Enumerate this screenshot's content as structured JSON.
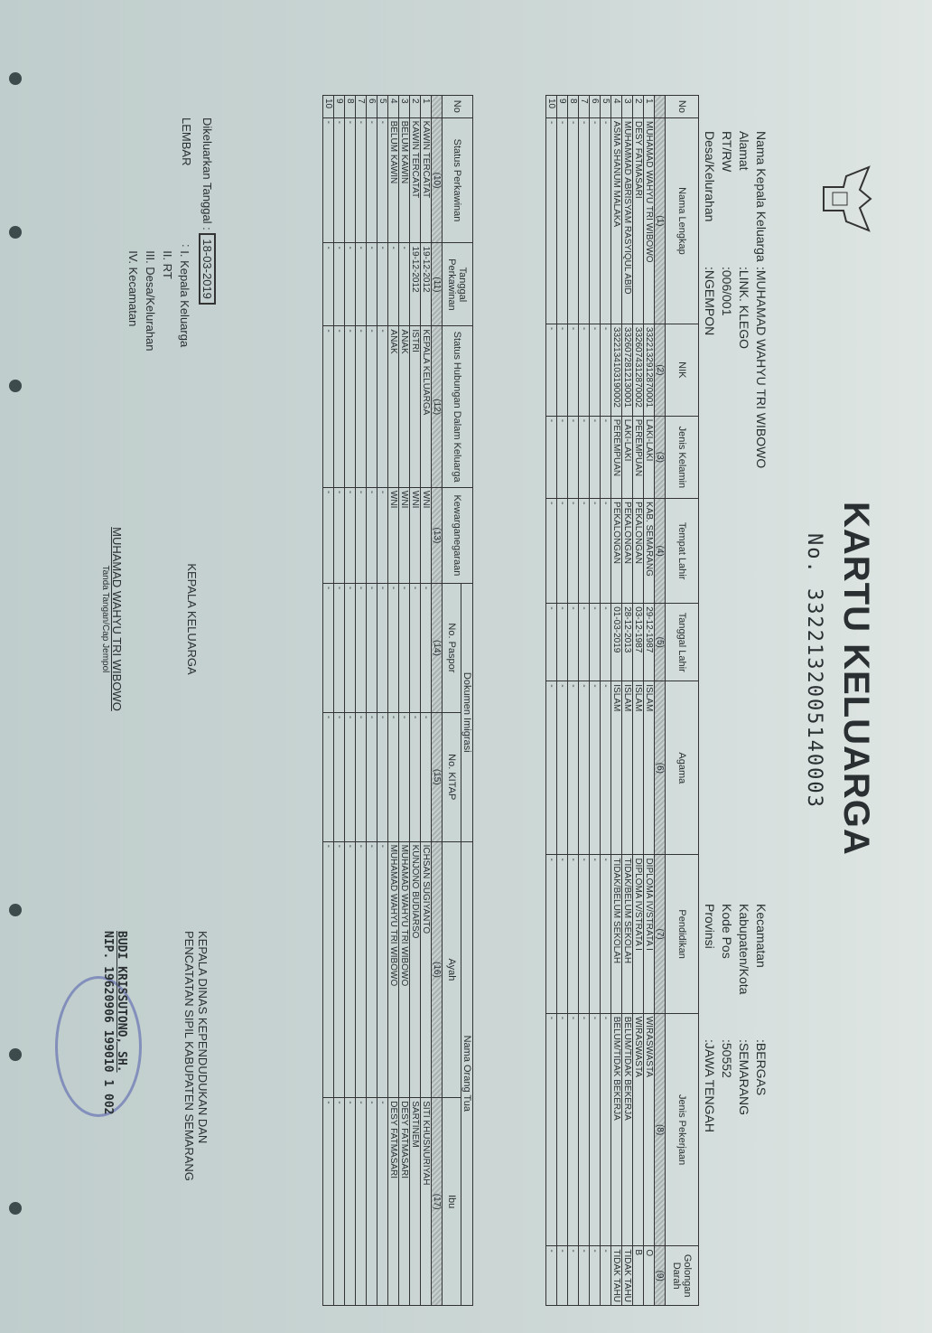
{
  "header": {
    "title": "KARTU KELUARGA",
    "number": "No. 3322132005140003"
  },
  "info_left": [
    {
      "label": "Nama Kepala Keluarga",
      "value": "MUHAMAD WAHYU TRI WIBOWO"
    },
    {
      "label": "Alamat",
      "value": "LINK. KLEGO"
    },
    {
      "label": "RT/RW",
      "value": "006/001"
    },
    {
      "label": "Desa/Kelurahan",
      "value": "NGEMPON"
    }
  ],
  "info_right": [
    {
      "label": "Kecamatan",
      "value": "BERGAS"
    },
    {
      "label": "Kabupaten/Kota",
      "value": "SEMARANG"
    },
    {
      "label": "Kode Pos",
      "value": "50552"
    },
    {
      "label": "Provinsi",
      "value": "JAWA TENGAH"
    }
  ],
  "table1": {
    "headers": [
      "No",
      "Nama Lengkap",
      "NIK",
      "Jenis Kelamin",
      "Tempat Lahir",
      "Tanggal Lahir",
      "Agama",
      "Pendidikan",
      "Jenis Pekerjaan",
      "Golongan Darah"
    ],
    "numbers": [
      "",
      "(1)",
      "(2)",
      "(3)",
      "(4)",
      "(5)",
      "(6)",
      "(7)",
      "(8)",
      "(9)"
    ],
    "rows": [
      [
        "1",
        "MUHAMAD WAHYU TRI WIBOWO",
        "3322132912870001",
        "LAKI-LAKI",
        "KAB. SEMARANG",
        "29-12-1987",
        "ISLAM",
        "DIPLOMA IV/STRATA I",
        "WIRASWASTA",
        "O"
      ],
      [
        "2",
        "DESY FATMASARI",
        "3326074312870002",
        "PEREMPUAN",
        "PEKALONGAN",
        "03-12-1987",
        "ISLAM",
        "DIPLOMA IV/STRATA I",
        "WIRASWASTA",
        "B"
      ],
      [
        "3",
        "MUHAMMAD ABRISYAM RASYIQUL ABID",
        "3326072812130001",
        "LAKI-LAKI",
        "PEKALONGAN",
        "28-12-2013",
        "ISLAM",
        "TIDAK/BELUM SEKOLAH",
        "BELUM/TIDAK BEKERJA",
        "TIDAK TAHU"
      ],
      [
        "4",
        "ASMA SHANUM MALAKA",
        "3322134103190002",
        "PEREMPUAN",
        "PEKALONGAN",
        "01-03-2019",
        "ISLAM",
        "TIDAK/BELUM SEKOLAH",
        "BELUM/TIDAK BEKERJA",
        "TIDAK TAHU"
      ],
      [
        "5",
        "-",
        "-",
        "-",
        "-",
        "-",
        "-",
        "-",
        "-",
        "-"
      ],
      [
        "6",
        "-",
        "-",
        "-",
        "-",
        "-",
        "-",
        "-",
        "-",
        "-"
      ],
      [
        "7",
        "-",
        "-",
        "-",
        "-",
        "-",
        "-",
        "-",
        "-",
        "-"
      ],
      [
        "8",
        "-",
        "-",
        "-",
        "-",
        "-",
        "-",
        "-",
        "-",
        "-"
      ],
      [
        "9",
        "-",
        "-",
        "-",
        "-",
        "-",
        "-",
        "-",
        "-",
        "-"
      ],
      [
        "10",
        "-",
        "-",
        "-",
        "-",
        "-",
        "-",
        "-",
        "-",
        "-"
      ]
    ]
  },
  "table2": {
    "group_headers": {
      "imigrasi": "Dokumen Imigrasi",
      "orangtua": "Nama Orang Tua"
    },
    "headers": [
      "No",
      "Status Perkawinan",
      "Tanggal Perkawinan",
      "Status Hubungan Dalam Keluarga",
      "Kewarganegaraan",
      "No. Paspor",
      "No. KITAP",
      "Ayah",
      "Ibu"
    ],
    "numbers": [
      "",
      "(10)",
      "(11)",
      "(12)",
      "(13)",
      "(14)",
      "(15)",
      "(16)",
      "(17)"
    ],
    "rows": [
      [
        "1",
        "KAWIN TERCATAT",
        "19-12-2012",
        "KEPALA KELUARGA",
        "WNI",
        "-",
        "-",
        "ICHSAN SUGIYANTO",
        "SITI KHUSNURIYAH"
      ],
      [
        "2",
        "KAWIN TERCATAT",
        "19-12-2012",
        "ISTRI",
        "WNI",
        "-",
        "-",
        "KUNJONO BUDIARSO",
        "SARTINEM"
      ],
      [
        "3",
        "BELUM KAWIN",
        "-",
        "ANAK",
        "WNI",
        "-",
        "-",
        "MUHAMAD WAHYU TRI WIBOWO",
        "DESY FATMASARI"
      ],
      [
        "4",
        "BELUM KAWIN",
        "-",
        "ANAK",
        "WNI",
        "-",
        "-",
        "MUHAMAD WAHYU TRI WIBOWO",
        "DESY FATMASARI"
      ],
      [
        "5",
        "-",
        "-",
        "-",
        "-",
        "-",
        "-",
        "-",
        "-"
      ],
      [
        "6",
        "-",
        "-",
        "-",
        "-",
        "-",
        "-",
        "-",
        "-"
      ],
      [
        "7",
        "-",
        "-",
        "-",
        "-",
        "-",
        "-",
        "-",
        "-"
      ],
      [
        "8",
        "-",
        "-",
        "-",
        "-",
        "-",
        "-",
        "-",
        "-"
      ],
      [
        "9",
        "-",
        "-",
        "-",
        "-",
        "-",
        "-",
        "-",
        "-"
      ],
      [
        "10",
        "-",
        "-",
        "-",
        "-",
        "-",
        "-",
        "-",
        "-"
      ]
    ]
  },
  "footer": {
    "issued_label": "Dikeluarkan Tanggal",
    "issued_date": "18-03-2019",
    "lembar_label": "LEMBAR",
    "lembar_items": [
      "I.  Kepala Keluarga",
      "II.  RT",
      "III. Desa/Kelurahan",
      "IV. Kecamatan"
    ],
    "head_title": "KEPALA KELUARGA",
    "head_name": "MUHAMAD WAHYU TRI WIBOWO",
    "head_caption": "Tanda Tangan/Cap Jempol",
    "official_title_1": "KEPALA DINAS KEPENDUDUKAN DAN",
    "official_title_2": "PENCATATAN SIPIL KABUPATEN SEMARANG",
    "official_name": "BUDI KRISSUTONO, SH.",
    "official_nip": "NIP. 19620906 199010 1 002"
  },
  "colors": {
    "paper": "#cdd8d6",
    "ink": "#2a2f31",
    "stamp": "#4650aa"
  }
}
